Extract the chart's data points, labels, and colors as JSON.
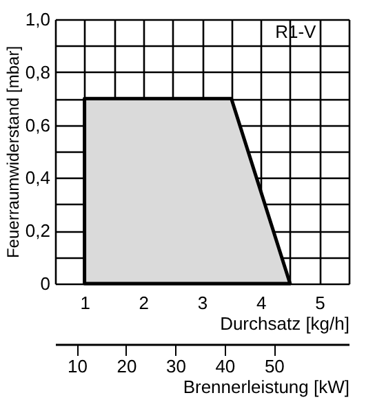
{
  "chart_data": {
    "type": "area",
    "xlabel": "Durchsatz  [kg/h]",
    "ylabel": "Feuerraumwiderstand [mbar]",
    "x2label": "Brennerleistung  [kW]",
    "x": [
      1,
      3.5,
      4.5
    ],
    "series": [
      {
        "color": "#dadada",
        "values": [
          0.7,
          0.7,
          0
        ]
      }
    ],
    "xlim": [
      0.5,
      5.5
    ],
    "xticks": [
      {
        "value": 0.5,
        "label": null
      },
      1,
      {
        "value": 1.5,
        "label": null
      },
      2,
      {
        "value": 2.5,
        "label": null
      },
      3,
      {
        "value": 3.5,
        "label": null
      },
      4,
      {
        "value": 4.5,
        "label": null
      },
      5,
      {
        "value": 5.5,
        "label": null
      }
    ],
    "ylim": [
      0,
      1.0
    ],
    "yticks": [
      0,
      {
        "value": 0.1,
        "label": null
      },
      {
        "value": 0.2,
        "label": "0,2"
      },
      {
        "value": 0.3,
        "label": null
      },
      {
        "value": 0.4,
        "label": "0,4"
      },
      {
        "value": 0.5,
        "label": null
      },
      {
        "value": 0.6,
        "label": "0,6"
      },
      {
        "value": 0.7,
        "label": null
      },
      {
        "value": 0.8,
        "label": "0,8"
      },
      {
        "value": 0.9,
        "label": null
      },
      {
        "value": 1.0,
        "label": "1,0"
      }
    ],
    "x2lim": [
      5.6,
      65.2
    ],
    "x2ticks": [
      10,
      20,
      30,
      40,
      50
    ],
    "annotations": [
      "R1-V"
    ],
    "grid": true
  }
}
